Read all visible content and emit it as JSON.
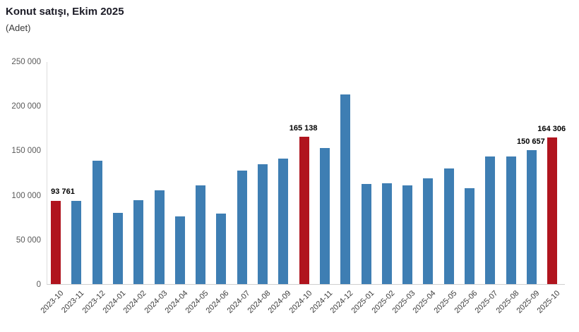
{
  "header": {
    "title": "Konut satışı, Ekim 2025",
    "subtitle": "(Adet)"
  },
  "colors": {
    "bar_default": "#3E7EB3",
    "bar_highlight": "#B0141E",
    "axis_line": "#d0d0d0",
    "tick_text": "#595959",
    "annotation_text": "#000000"
  },
  "chart_data": {
    "type": "bar",
    "title": "Konut satışı, Ekim 2025",
    "ylabel": "(Adet)",
    "xlabel": "",
    "grid": false,
    "legend_position": "none",
    "ylim": [
      0,
      250000
    ],
    "y_tick_values": [
      0,
      50000,
      100000,
      150000,
      200000,
      250000
    ],
    "y_tick_labels": [
      "0",
      "50 000",
      "100 000",
      "150 000",
      "200 000",
      "250 000"
    ],
    "categories": [
      "2023-10",
      "2023-11",
      "2023-12",
      "2024-01",
      "2024-02",
      "2024-03",
      "2024-04",
      "2024-05",
      "2024-06",
      "2024-07",
      "2024-08",
      "2024-09",
      "2024-10",
      "2024-11",
      "2024-12",
      "2025-01",
      "2025-02",
      "2025-03",
      "2025-04",
      "2025-05",
      "2025-06",
      "2025-07",
      "2025-08",
      "2025-09",
      "2025-10"
    ],
    "values": [
      93761,
      93748,
      138577,
      80308,
      93902,
      105476,
      75569,
      110588,
      79313,
      127088,
      134155,
      140919,
      165138,
      153014,
      212637,
      112173,
      112818,
      110795,
      118359,
      130025,
      107723,
      142858,
      143319,
      150657,
      164306
    ],
    "highlighted_indices": [
      0,
      12,
      24
    ],
    "labeled_points": [
      {
        "index": 0,
        "label": "93 761"
      },
      {
        "index": 12,
        "label": "165 138"
      },
      {
        "index": 23,
        "label": "150 657"
      },
      {
        "index": 24,
        "label": "164 306"
      }
    ]
  }
}
